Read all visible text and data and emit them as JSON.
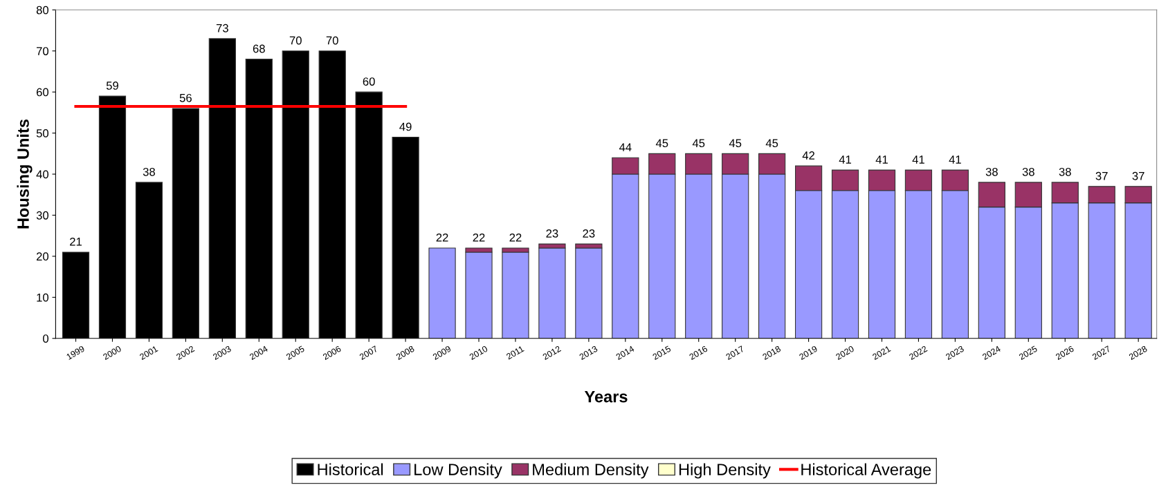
{
  "chart_data": {
    "type": "bar",
    "stacked": true,
    "xlabel": "Years",
    "ylabel": "Housing Units",
    "categories": [
      "1999",
      "2000",
      "2001",
      "2002",
      "2003",
      "2004",
      "2005",
      "2006",
      "2007",
      "2008",
      "2009",
      "2010",
      "2011",
      "2012",
      "2013",
      "2014",
      "2015",
      "2016",
      "2017",
      "2018",
      "2019",
      "2020",
      "2021",
      "2022",
      "2023",
      "2024",
      "2025",
      "2026",
      "2027",
      "2028"
    ],
    "series": [
      {
        "name": "Historical",
        "color": "#000000",
        "values": [
          21,
          59,
          38,
          56,
          73,
          68,
          70,
          70,
          60,
          49,
          0,
          0,
          0,
          0,
          0,
          0,
          0,
          0,
          0,
          0,
          0,
          0,
          0,
          0,
          0,
          0,
          0,
          0,
          0,
          0
        ]
      },
      {
        "name": "Low Density",
        "color": "#9999ff",
        "values": [
          0,
          0,
          0,
          0,
          0,
          0,
          0,
          0,
          0,
          0,
          22,
          21,
          21,
          22,
          22,
          40,
          40,
          40,
          40,
          40,
          36,
          36,
          36,
          36,
          36,
          32,
          32,
          33,
          33,
          33
        ]
      },
      {
        "name": "Medium Density",
        "color": "#993366",
        "values": [
          0,
          0,
          0,
          0,
          0,
          0,
          0,
          0,
          0,
          0,
          0,
          1,
          1,
          1,
          1,
          4,
          5,
          5,
          5,
          5,
          6,
          5,
          5,
          5,
          5,
          6,
          6,
          5,
          4,
          4
        ]
      },
      {
        "name": "High Density",
        "color": "#ffffcc",
        "values": [
          0,
          0,
          0,
          0,
          0,
          0,
          0,
          0,
          0,
          0,
          0,
          0,
          0,
          0,
          0,
          0,
          0,
          0,
          0,
          0,
          0,
          0,
          0,
          0,
          0,
          0,
          0,
          0,
          0,
          0
        ]
      },
      {
        "name": "Historical Average",
        "type": "line",
        "color": "#ff0000",
        "values": [
          56.5,
          56.5,
          56.5,
          56.5,
          56.5,
          56.5,
          56.5,
          56.5,
          56.5,
          56.5,
          null,
          null,
          null,
          null,
          null,
          null,
          null,
          null,
          null,
          null,
          null,
          null,
          null,
          null,
          null,
          null,
          null,
          null,
          null,
          null
        ]
      }
    ],
    "totals": [
      "21",
      "59",
      "38",
      "56",
      "73",
      "68",
      "70",
      "70",
      "60",
      "49",
      "22",
      "22",
      "22",
      "23",
      "23",
      "44",
      "45",
      "45",
      "45",
      "45",
      "42",
      "41",
      "41",
      "41",
      "41",
      "38",
      "38",
      "38",
      "37",
      "37"
    ],
    "ylim": [
      0,
      80
    ],
    "yticks": [
      0,
      10,
      20,
      30,
      40,
      50,
      60,
      70,
      80
    ],
    "grid": false,
    "legend": "bottom"
  }
}
